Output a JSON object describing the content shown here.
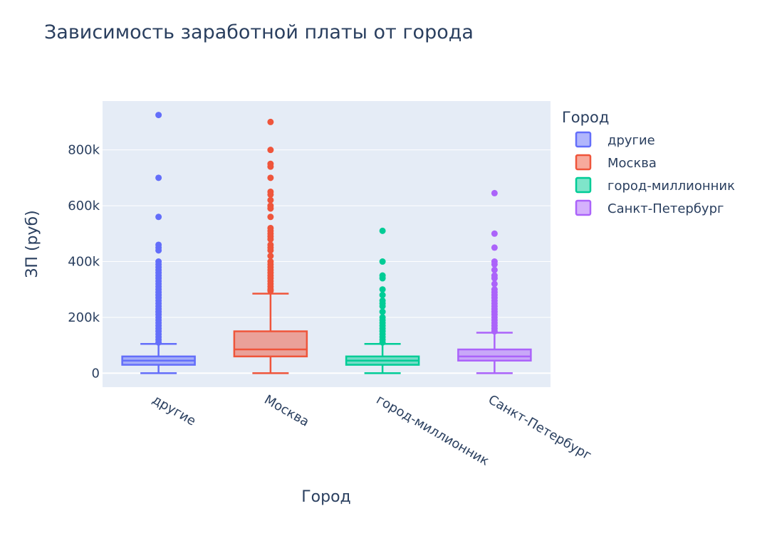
{
  "chart_data": {
    "type": "box",
    "title": "Зависимость заработной платы от города",
    "xlabel": "Город",
    "ylabel": "ЗП (руб)",
    "ylim": [
      -50000,
      975000
    ],
    "yticks": [
      0,
      200000,
      400000,
      600000,
      800000
    ],
    "ytick_labels": [
      "0",
      "200k",
      "400k",
      "600k",
      "800k"
    ],
    "grid": true,
    "legend": {
      "title": "Город",
      "placement": "right"
    },
    "series": [
      {
        "name": "другие",
        "color": "#636efa",
        "min": 0,
        "q1": 30000,
        "median": 45000,
        "q3": 60000,
        "max": 105000,
        "outliers": [
          925000,
          700000,
          560000,
          460000,
          450000,
          440000,
          400000,
          390000,
          380000,
          370000,
          360000,
          350000,
          340000,
          330000,
          320000,
          310000,
          300000,
          290000,
          280000,
          270000,
          260000,
          250000,
          240000,
          230000,
          220000,
          210000,
          200000,
          190000,
          180000,
          170000,
          160000,
          150000,
          140000,
          130000,
          120000,
          110000
        ]
      },
      {
        "name": "Москва",
        "color": "#ef553b",
        "min": 0,
        "q1": 60000,
        "median": 85000,
        "q3": 150000,
        "max": 285000,
        "outliers": [
          900000,
          800000,
          750000,
          740000,
          700000,
          650000,
          640000,
          620000,
          600000,
          590000,
          560000,
          520000,
          510000,
          500000,
          490000,
          480000,
          460000,
          450000,
          440000,
          420000,
          400000,
          390000,
          380000,
          370000,
          360000,
          350000,
          340000,
          330000,
          320000,
          310000,
          300000,
          295000
        ]
      },
      {
        "name": "город-миллионник",
        "color": "#00cc96",
        "min": 0,
        "q1": 30000,
        "median": 45000,
        "q3": 60000,
        "max": 105000,
        "outliers": [
          510000,
          400000,
          350000,
          340000,
          300000,
          280000,
          260000,
          250000,
          240000,
          220000,
          200000,
          190000,
          180000,
          170000,
          160000,
          150000,
          140000,
          130000,
          120000,
          110000
        ]
      },
      {
        "name": "Санкт-Петербург",
        "color": "#ab63fa",
        "min": 0,
        "q1": 45000,
        "median": 60000,
        "q3": 85000,
        "max": 145000,
        "outliers": [
          645000,
          500000,
          450000,
          400000,
          390000,
          370000,
          350000,
          340000,
          320000,
          300000,
          290000,
          280000,
          270000,
          260000,
          250000,
          240000,
          230000,
          220000,
          210000,
          200000,
          190000,
          180000,
          170000,
          160000,
          150000
        ]
      }
    ]
  }
}
